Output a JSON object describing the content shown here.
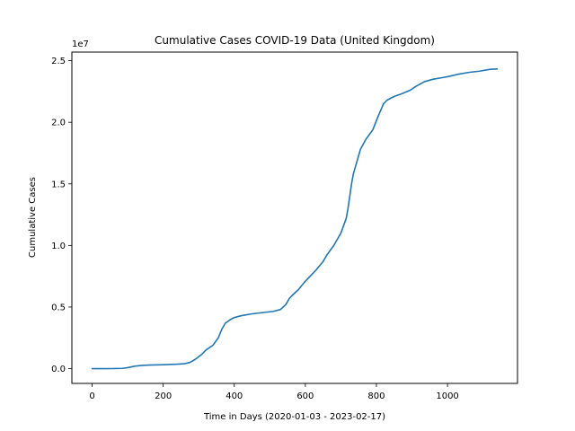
{
  "chart_data": {
    "type": "line",
    "title": "Cumulative Cases COVID-19 Data (United Kingdom)",
    "xlabel": "Time in Days (2020-01-03 - 2023-02-17)",
    "ylabel": "Cumulative Cases",
    "y_offset_text": "1e7",
    "xlim": [
      -57,
      1197
    ],
    "ylim": [
      -1200000,
      25700000
    ],
    "x_ticks": [
      0,
      200,
      400,
      600,
      800,
      1000
    ],
    "x_tick_labels": [
      "0",
      "200",
      "400",
      "600",
      "800",
      "1000"
    ],
    "y_ticks": [
      0,
      5000000,
      10000000,
      15000000,
      20000000,
      25000000
    ],
    "y_tick_labels": [
      "0.0",
      "0.5",
      "1.0",
      "1.5",
      "2.0",
      "2.5"
    ],
    "grid": false,
    "line_color": "#1f77b4",
    "series": [
      {
        "x": [
          0,
          30,
          60,
          85,
          100,
          120,
          140,
          160,
          200,
          240,
          260,
          275,
          290,
          310,
          320,
          340,
          355,
          365,
          375,
          390,
          400,
          420,
          450,
          480,
          510,
          530,
          545,
          555,
          565,
          580,
          600,
          610,
          630,
          650,
          660,
          680,
          700,
          715,
          720,
          725,
          730,
          735,
          745,
          755,
          770,
          790,
          805,
          820,
          830,
          850,
          870,
          895,
          910,
          935,
          960,
          990,
          1000,
          1030,
          1060,
          1090,
          1120,
          1140
        ],
        "y": [
          0,
          0,
          3000,
          20000,
          80000,
          200000,
          260000,
          290000,
          320000,
          360000,
          400000,
          500000,
          750000,
          1200000,
          1500000,
          1900000,
          2500000,
          3200000,
          3700000,
          4000000,
          4150000,
          4300000,
          4450000,
          4550000,
          4650000,
          4800000,
          5200000,
          5700000,
          6000000,
          6400000,
          7100000,
          7400000,
          8000000,
          8700000,
          9200000,
          10000000,
          11000000,
          12200000,
          13000000,
          14000000,
          15000000,
          15800000,
          16800000,
          17800000,
          18600000,
          19400000,
          20500000,
          21500000,
          21800000,
          22100000,
          22300000,
          22600000,
          22900000,
          23300000,
          23500000,
          23650000,
          23700000,
          23900000,
          24050000,
          24150000,
          24300000,
          24330000
        ]
      }
    ]
  }
}
